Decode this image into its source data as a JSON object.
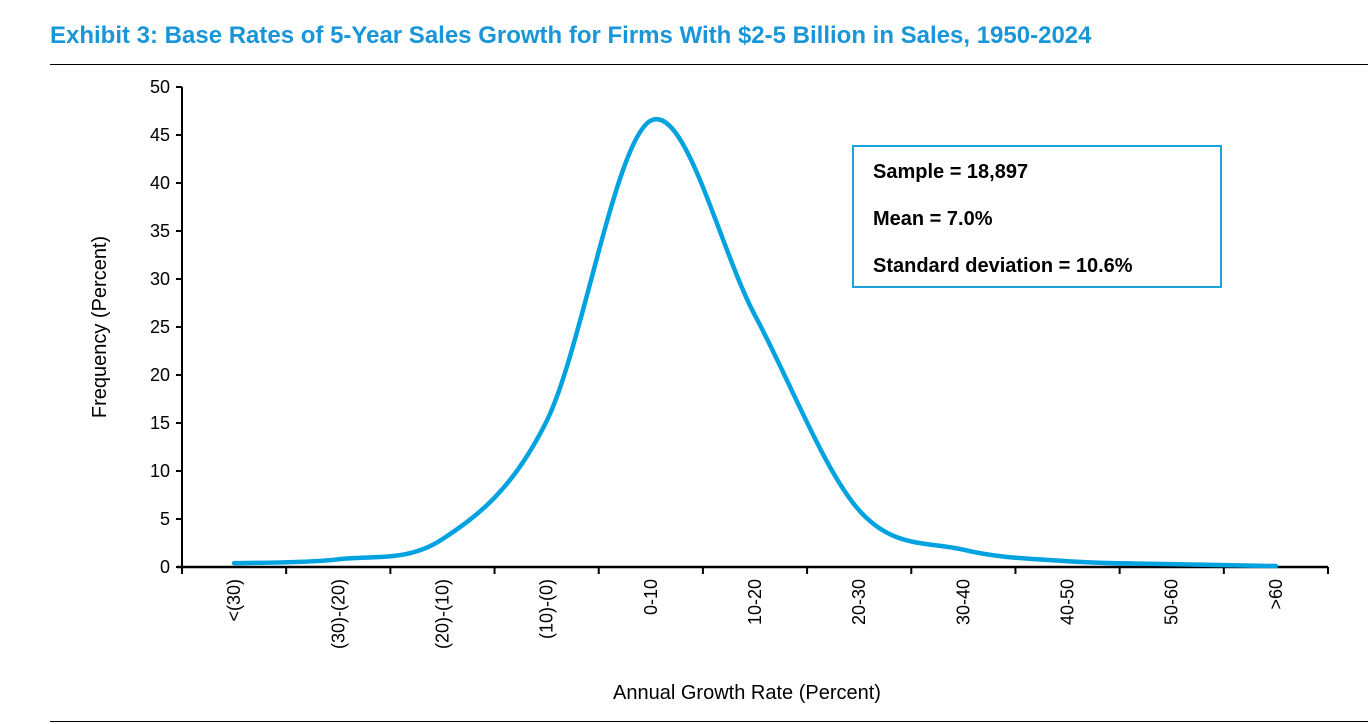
{
  "title": "Exhibit 3: Base Rates of 5-Year Sales Growth for Firms With $2-5 Billion in Sales, 1950-2024",
  "stats": [
    "Sample = 18,897",
    "Mean = 7.0%",
    "Standard deviation = 10.6%"
  ],
  "colors": {
    "title": "#1996d8",
    "line": "#00a3e0",
    "box_border": "#1aa3dd"
  },
  "chart_data": {
    "type": "line",
    "smooth": true,
    "title": "Exhibit 3: Base Rates of 5-Year Sales Growth for Firms With $2-5 Billion in Sales, 1950-2024",
    "xlabel": "Annual Growth Rate (Percent)",
    "ylabel": "Frequency (Percent)",
    "categories": [
      "<(30)",
      "(30)-(20)",
      "(20)-(10)",
      "(10)-(0)",
      "0-10",
      "10-20",
      "20-30",
      "30-40",
      "40-50",
      "50-60",
      ">60"
    ],
    "values": [
      0.4,
      0.8,
      2.9,
      15.2,
      46.5,
      26.2,
      5.9,
      1.8,
      0.6,
      0.3,
      0.1
    ],
    "ylim": [
      0,
      50
    ],
    "yticks": [
      0,
      5,
      10,
      15,
      20,
      25,
      30,
      35,
      40,
      45,
      50
    ],
    "grid": false,
    "legend": "none"
  }
}
